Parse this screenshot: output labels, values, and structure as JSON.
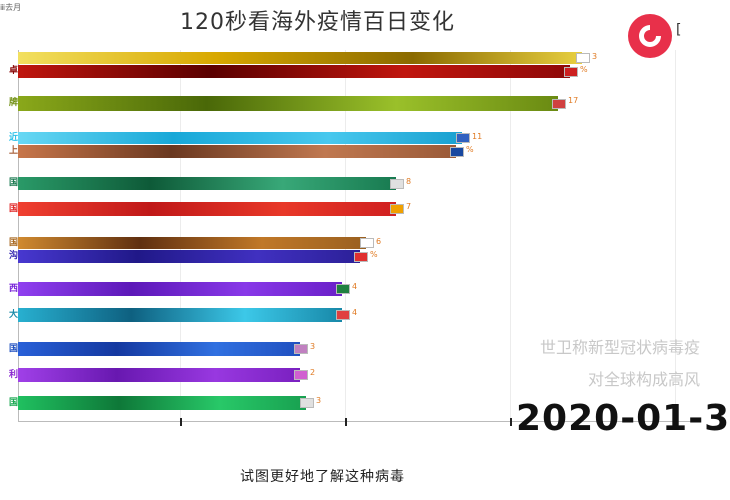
{
  "header": {
    "title": "120秒看海外疫情百日变化",
    "corner_text": "ⅲ去月"
  },
  "logo": {
    "fragment": "["
  },
  "race": {
    "rows": [
      {
        "label": "",
        "value": 94,
        "color": "#d8b400",
        "gradient": [
          "#f2e060",
          "#d8a800",
          "#8a6a00",
          "#e8d040"
        ],
        "flag": "#ffffff",
        "count": "3"
      },
      {
        "label": "卓",
        "value": 92,
        "color": "#8a0a0a",
        "gradient": [
          "#c0160e",
          "#5a0000",
          "#c0160e",
          "#8e0808"
        ],
        "flag": "#cc2020",
        "count": "%"
      },
      {
        "label": "牌",
        "value": 90,
        "color": "#6f8e10",
        "gradient": [
          "#8aa81a",
          "#4a6808",
          "#9ac02a",
          "#6a8a12"
        ],
        "flag": "#d04040",
        "count": "17"
      },
      {
        "label": "近",
        "value": 74,
        "color": "#2ac0e8",
        "gradient": [
          "#68d8f4",
          "#18a8d8",
          "#48c8ee",
          "#18a0d0"
        ],
        "flag": "#3060c0",
        "count": "11"
      },
      {
        "label": "上",
        "value": 73,
        "color": "#a8603a",
        "gradient": [
          "#c8764a",
          "#6a3820",
          "#c07850",
          "#9a5a38"
        ],
        "flag": "#1848a0",
        "count": "%"
      },
      {
        "label": "国",
        "value": 63,
        "color": "#1a7a50",
        "gradient": [
          "#2a9a68",
          "#0e5a38",
          "#38a878",
          "#187a50"
        ],
        "flag": "#e0e0e0",
        "count": "8"
      },
      {
        "label": "国",
        "value": 63,
        "color": "#e02828",
        "gradient": [
          "#f04030",
          "#c01818",
          "#e83828",
          "#d02020"
        ],
        "flag": "#f0a000",
        "count": "7"
      },
      {
        "label": "国",
        "value": 58,
        "color": "#a86820",
        "gradient": [
          "#d08a30",
          "#603010",
          "#c07828",
          "#9a6020"
        ],
        "flag": "#ffffff",
        "count": "6"
      },
      {
        "label": "沟",
        "value": 57,
        "color": "#3428b0",
        "gradient": [
          "#4838d0",
          "#201888",
          "#4030c0",
          "#2c2098"
        ],
        "flag": "#e03030",
        "count": "%"
      },
      {
        "label": "西",
        "value": 54,
        "color": "#7a28d8",
        "gradient": [
          "#9040f0",
          "#5c18b8",
          "#8838e8",
          "#6a20c8"
        ],
        "flag": "#208040",
        "count": "4"
      },
      {
        "label": "大",
        "value": 54,
        "color": "#1a8aa8",
        "gradient": [
          "#28b0d0",
          "#0e6080",
          "#3cc8e8",
          "#1888a8"
        ],
        "flag": "#e04040",
        "count": "4"
      },
      {
        "label": "国",
        "value": 47,
        "color": "#2050c0",
        "gradient": [
          "#2860d8",
          "#1438a0",
          "#3070e0",
          "#2050c0"
        ],
        "flag": "#c080c0",
        "count": "3"
      },
      {
        "label": "利",
        "value": 47,
        "color": "#8a28d0",
        "gradient": [
          "#a040e8",
          "#6818b0",
          "#9838e0",
          "#7a20c0"
        ],
        "flag": "#d060d0",
        "count": "2"
      },
      {
        "label": "国",
        "value": 48,
        "color": "#18a850",
        "gradient": [
          "#20c060",
          "#0e7838",
          "#28c868",
          "#18a050"
        ],
        "flag": "#e0e0e0",
        "count": "3"
      }
    ],
    "x_max": 100
  },
  "overlay": {
    "line1": "世卫称新型冠状病毒疫",
    "line2": "对全球构成高风"
  },
  "date": "2020-01-3",
  "subtitle": "试图更好地了解这种病毒"
}
